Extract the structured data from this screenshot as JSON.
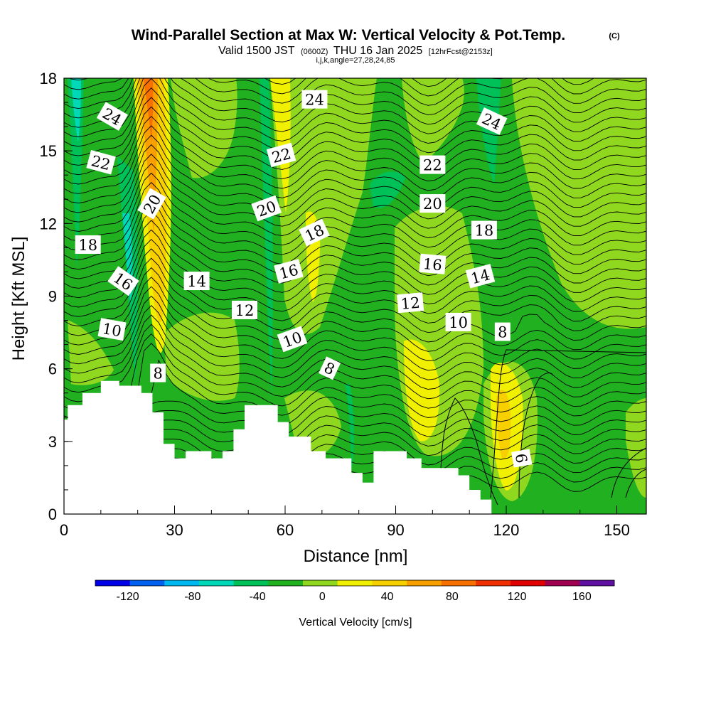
{
  "chart_data": {
    "type": "contour",
    "title": "Wind-Parallel Section at Max W: Vertical Velocity & Pot.Temp.",
    "title_tag": "(C)",
    "subtitle_main": "Valid 1500 JST",
    "subtitle_utc": "(0600Z)",
    "subtitle_date": "THU 16 Jan 2025",
    "subtitle_fcst": "[12hrFcst@2153z]",
    "subtitle_indices": "i,j,k,angle=27,28,24,85",
    "xlabel": "Distance [nm]",
    "ylabel": "Height [Kft MSL]",
    "xlim": [
      0,
      158
    ],
    "ylim": [
      0,
      18
    ],
    "x_ticks": [
      "0",
      "30",
      "60",
      "90",
      "120",
      "150"
    ],
    "y_ticks": [
      "0",
      "3",
      "6",
      "9",
      "12",
      "15",
      "18"
    ],
    "colorbar": {
      "label": "Vertical Velocity [cm/s]",
      "range": [
        -140,
        180
      ],
      "tick_labels": [
        "-120",
        "-80",
        "-40",
        "0",
        "40",
        "80",
        "120",
        "160"
      ],
      "colors": [
        "#0000e8",
        "#0060f0",
        "#00b8f0",
        "#00d8b8",
        "#00c058",
        "#20b020",
        "#90d820",
        "#f0f000",
        "#f8d000",
        "#f8a000",
        "#f87000",
        "#f03000",
        "#e00000",
        "#a00050",
        "#6010a0"
      ]
    },
    "colors": {
      "c_neg60": "#00d8b8",
      "c_neg40": "#00c058",
      "c_zero": "#20b020",
      "c_pos20": "#90d820",
      "c_pos40": "#f0f000",
      "c_pos60": "#f8d000",
      "c_pos80": "#f8a000",
      "c_pos100": "#f87000",
      "terrain": "#ffffff"
    },
    "terrain": {
      "x": [
        0,
        1,
        1,
        5,
        5,
        10,
        10,
        15,
        15,
        21,
        21,
        24,
        24,
        27,
        27,
        30,
        30,
        33,
        33,
        40,
        40,
        43,
        43,
        46,
        46,
        49,
        49,
        52,
        52,
        55,
        55,
        58,
        58,
        61,
        61,
        67,
        67,
        71,
        71,
        78,
        78,
        81,
        81,
        84,
        84,
        88,
        88,
        93,
        93,
        97,
        97,
        100,
        100,
        107,
        107,
        110,
        110,
        113,
        113,
        116,
        116,
        158
      ],
      "y": [
        3.9,
        3.9,
        4.5,
        4.5,
        5.0,
        5.0,
        5.5,
        5.5,
        5.3,
        5.3,
        5.0,
        5.0,
        4.2,
        4.2,
        2.9,
        2.9,
        2.3,
        2.3,
        2.6,
        2.6,
        2.3,
        2.3,
        2.6,
        2.6,
        3.5,
        3.5,
        4.5,
        4.5,
        4.5,
        4.5,
        4.5,
        4.5,
        3.8,
        3.8,
        3.2,
        3.2,
        2.6,
        2.6,
        2.3,
        2.3,
        1.7,
        1.7,
        1.3,
        1.3,
        2.6,
        2.6,
        2.6,
        2.6,
        2.3,
        2.3,
        1.9,
        1.9,
        1.9,
        1.9,
        1.6,
        1.6,
        1.0,
        1.0,
        0.6,
        0.6,
        0.0,
        0.0
      ]
    },
    "vertical_velocity_features": [
      {
        "x": 23,
        "y": 16.5,
        "min_cm_s": 80,
        "max_cm_s": 100,
        "desc": "updraft plume"
      },
      {
        "x": 60,
        "y": 13,
        "min_cm_s": 40,
        "max_cm_s": 60,
        "desc": "updraft"
      },
      {
        "x": 98,
        "y": 5,
        "min_cm_s": 40,
        "max_cm_s": 60,
        "desc": "updraft"
      },
      {
        "x": 120,
        "y": 4,
        "min_cm_s": 60,
        "max_cm_s": 80,
        "desc": "updraft"
      },
      {
        "x": 3,
        "y": 15,
        "min_cm_s": -60,
        "max_cm_s": -40,
        "desc": "downdraft"
      },
      {
        "x": 17,
        "y": 11,
        "min_cm_s": -60,
        "max_cm_s": -40,
        "desc": "downdraft"
      }
    ],
    "theta_contour_labels": [
      {
        "text": "24",
        "x": 13,
        "y": 16.4,
        "rot": 30
      },
      {
        "text": "24",
        "x": 68,
        "y": 17.1,
        "rot": 0
      },
      {
        "text": "24",
        "x": 116,
        "y": 16.2,
        "rot": 25
      },
      {
        "text": "22",
        "x": 10,
        "y": 14.5,
        "rot": 15
      },
      {
        "text": "22",
        "x": 59,
        "y": 14.8,
        "rot": -15
      },
      {
        "text": "22",
        "x": 100,
        "y": 14.4,
        "rot": 0
      },
      {
        "text": "20",
        "x": 24,
        "y": 12.8,
        "rot": -60
      },
      {
        "text": "20",
        "x": 55,
        "y": 12.6,
        "rot": -20
      },
      {
        "text": "20",
        "x": 100,
        "y": 12.8,
        "rot": 0
      },
      {
        "text": "18",
        "x": 6.5,
        "y": 11.1,
        "rot": 0
      },
      {
        "text": "18",
        "x": 68,
        "y": 11.6,
        "rot": -25
      },
      {
        "text": "18",
        "x": 114,
        "y": 11.7,
        "rot": 0
      },
      {
        "text": "16",
        "x": 16,
        "y": 9.6,
        "rot": 35
      },
      {
        "text": "16",
        "x": 61,
        "y": 10.0,
        "rot": -15
      },
      {
        "text": "16",
        "x": 100,
        "y": 10.3,
        "rot": 5
      },
      {
        "text": "14",
        "x": 36,
        "y": 9.6,
        "rot": 0
      },
      {
        "text": "14",
        "x": 113,
        "y": 9.8,
        "rot": -15
      },
      {
        "text": "12",
        "x": 49,
        "y": 8.4,
        "rot": 0
      },
      {
        "text": "12",
        "x": 94,
        "y": 8.7,
        "rot": -5
      },
      {
        "text": "10",
        "x": 13,
        "y": 7.6,
        "rot": 10
      },
      {
        "text": "10",
        "x": 62,
        "y": 7.2,
        "rot": -20
      },
      {
        "text": "10",
        "x": 107,
        "y": 7.9,
        "rot": 0
      },
      {
        "text": "8",
        "x": 25.5,
        "y": 5.8,
        "rot": 0
      },
      {
        "text": "8",
        "x": 72,
        "y": 6.0,
        "rot": 25
      },
      {
        "text": "8",
        "x": 119,
        "y": 7.5,
        "rot": 0
      },
      {
        "text": "6",
        "x": 124,
        "y": 2.3,
        "rot": 80
      }
    ]
  }
}
